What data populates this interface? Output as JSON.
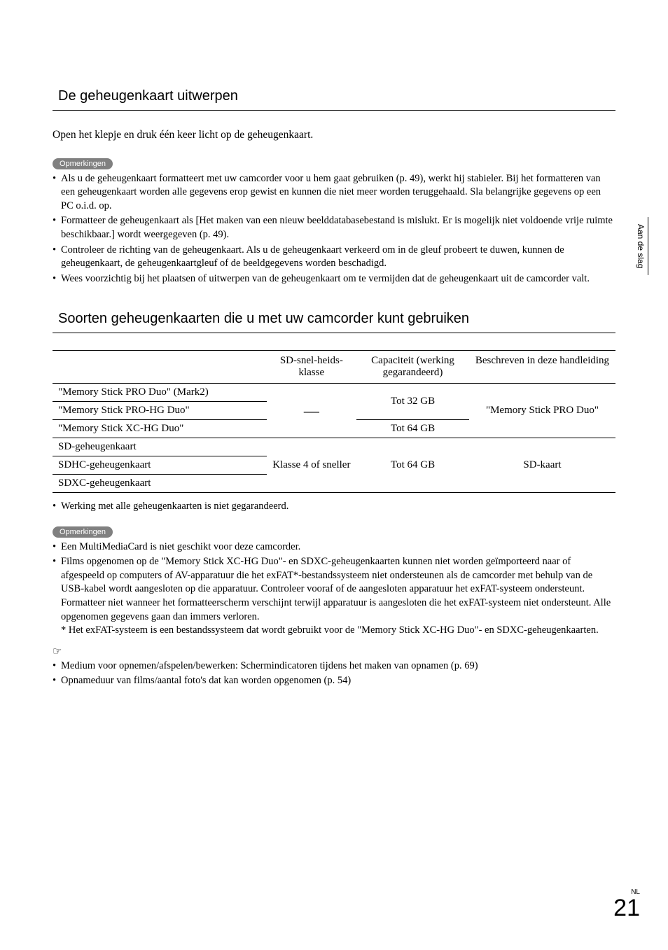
{
  "sideTab": "Aan de slag",
  "heading1": "De geheugenkaart uitwerpen",
  "intro1": "Open het klepje en druk één keer licht op de geheugenkaart.",
  "noteLabel": "Opmerkingen",
  "notes1": [
    "Als u de geheugenkaart formatteert met uw camcorder voor u hem gaat gebruiken (p. 49), werkt hij stabieler. Bij het formatteren van een geheugenkaart worden alle gegevens erop gewist en kunnen die niet meer worden teruggehaald. Sla belangrijke gegevens op een PC o.i.d. op.",
    "Formatteer de geheugenkaart als [Het maken van een nieuw beelddatabasebestand is mislukt. Er is mogelijk niet voldoende vrije ruimte beschikbaar.] wordt weergegeven (p. 49).",
    "Controleer de richting van de geheugenkaart. Als u de geheugenkaart verkeerd om in de gleuf probeert te duwen, kunnen de geheugenkaart, de geheugenkaartgleuf of de beeldgegevens worden beschadigd.",
    "Wees voorzichtig bij het plaatsen of uitwerpen van de geheugenkaart om te vermijden dat de geheugenkaart uit de camcorder valt."
  ],
  "heading2": "Soorten geheugenkaarten die u met uw camcorder kunt gebruiken",
  "table": {
    "headers": [
      "",
      "SD-snel-heids-klasse",
      "Capaciteit (werking gegarandeerd)",
      "Beschreven in deze handleiding"
    ],
    "rows": [
      {
        "name": "\"Memory Stick PRO Duo\" (Mark2)"
      },
      {
        "name": "\"Memory Stick PRO-HG Duo\""
      },
      {
        "name": "\"Memory Stick XC-HG Duo\""
      },
      {
        "name": "SD-geheugenkaart"
      },
      {
        "name": "SDHC-geheugenkaart"
      },
      {
        "name": "SDXC-geheugenkaart"
      }
    ],
    "speed_dash": "—",
    "speed_sd": "Klasse 4 of sneller",
    "cap_32": "Tot 32 GB",
    "cap_64": "Tot 64 GB",
    "desc_ms": "\"Memory Stick PRO Duo\"",
    "desc_sd": "SD-kaart"
  },
  "tableFootnote": "Werking met alle geheugenkaarten is niet gegarandeerd.",
  "notes2": [
    "Een MultiMediaCard is niet geschikt voor deze camcorder.",
    "Films opgenomen op de \"Memory Stick XC-HG Duo\"- en SDXC-geheugenkaarten kunnen niet worden geïmporteerd naar of afgespeeld op computers of AV-apparatuur die het exFAT*-bestandssysteem niet ondersteunen als de camcorder met behulp van de USB-kabel wordt aangesloten op die apparatuur. Controleer vooraf of de aangesloten apparatuur het exFAT-systeem ondersteunt. Formatteer niet wanneer het formatteerscherm verschijnt terwijl apparatuur is aangesloten die het exFAT-systeem niet ondersteunt. Alle opgenomen gegevens gaan dan immers verloren.\n* Het exFAT-systeem is een bestandssysteem dat wordt gebruikt voor de \"Memory Stick XC-HG Duo\"- en SDXC-geheugenkaarten."
  ],
  "handIcon": "☞",
  "refs": [
    "Medium voor opnemen/afspelen/bewerken: Schermindicatoren tijdens het maken van opnamen (p. 69)",
    "Opnameduur van films/aantal foto's dat kan worden opgenomen (p. 54)"
  ],
  "footer": {
    "lang": "NL",
    "page": "21"
  }
}
